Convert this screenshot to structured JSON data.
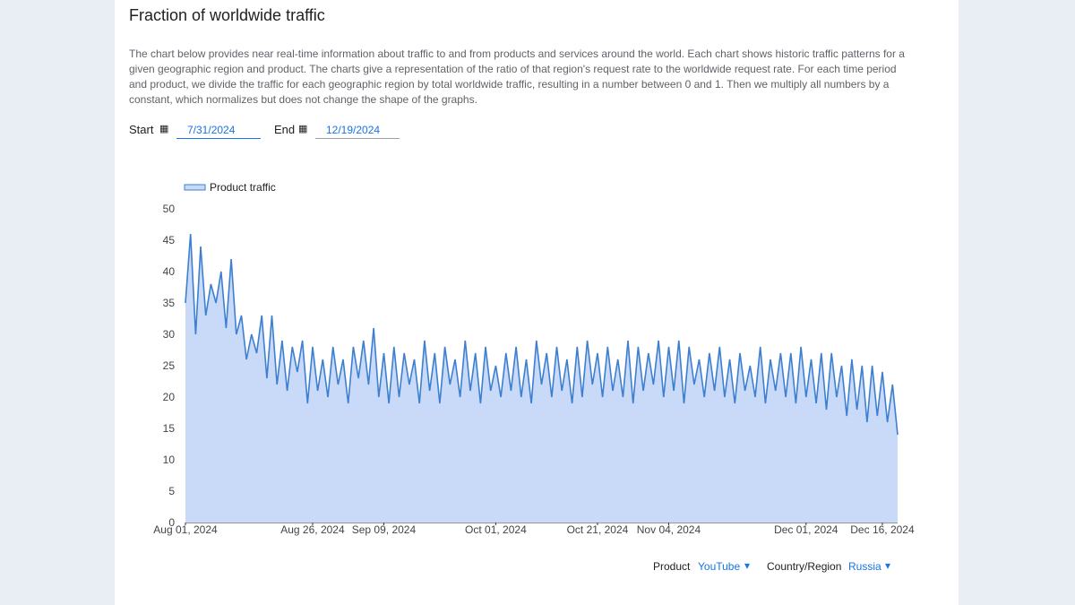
{
  "title": "Fraction of worldwide traffic",
  "description": "The chart below provides near real-time information about traffic to and from products and services around the world. Each chart shows historic traffic patterns for a given geographic region and product. The charts give a representation of the ratio of that region's request rate to the worldwide request rate. For each time period and product, we divide the traffic for each geographic region by total worldwide traffic, resulting in a number between 0 and 1. Then we multiply all numbers by a constant, which normalizes but does not change the shape of the graphs.",
  "start_label": "Start",
  "start_date": "7/31/2024",
  "end_label": "End",
  "end_date": "12/19/2024",
  "product_label": "Product",
  "product": "YouTube",
  "region_label": "Country/Region",
  "region": "Russia",
  "chart_data": {
    "type": "line",
    "x": [
      "2024-08-01",
      "2024-08-02",
      "2024-08-03",
      "2024-08-04",
      "2024-08-05",
      "2024-08-06",
      "2024-08-07",
      "2024-08-08",
      "2024-08-09",
      "2024-08-10",
      "2024-08-11",
      "2024-08-12",
      "2024-08-13",
      "2024-08-14",
      "2024-08-15",
      "2024-08-16",
      "2024-08-17",
      "2024-08-18",
      "2024-08-19",
      "2024-08-20",
      "2024-08-21",
      "2024-08-22",
      "2024-08-23",
      "2024-08-24",
      "2024-08-25",
      "2024-08-26",
      "2024-08-27",
      "2024-08-28",
      "2024-08-29",
      "2024-08-30",
      "2024-08-31",
      "2024-09-01",
      "2024-09-02",
      "2024-09-03",
      "2024-09-04",
      "2024-09-05",
      "2024-09-06",
      "2024-09-07",
      "2024-09-08",
      "2024-09-09",
      "2024-09-10",
      "2024-09-11",
      "2024-09-12",
      "2024-09-13",
      "2024-09-14",
      "2024-09-15",
      "2024-09-16",
      "2024-09-17",
      "2024-09-18",
      "2024-09-19",
      "2024-09-20",
      "2024-09-21",
      "2024-09-22",
      "2024-09-23",
      "2024-09-24",
      "2024-09-25",
      "2024-09-26",
      "2024-09-27",
      "2024-09-28",
      "2024-09-29",
      "2024-09-30",
      "2024-10-01",
      "2024-10-02",
      "2024-10-03",
      "2024-10-04",
      "2024-10-05",
      "2024-10-06",
      "2024-10-07",
      "2024-10-08",
      "2024-10-09",
      "2024-10-10",
      "2024-10-11",
      "2024-10-12",
      "2024-10-13",
      "2024-10-14",
      "2024-10-15",
      "2024-10-16",
      "2024-10-17",
      "2024-10-18",
      "2024-10-19",
      "2024-10-20",
      "2024-10-21",
      "2024-10-22",
      "2024-10-23",
      "2024-10-24",
      "2024-10-25",
      "2024-10-26",
      "2024-10-27",
      "2024-10-28",
      "2024-10-29",
      "2024-10-30",
      "2024-10-31",
      "2024-11-01",
      "2024-11-02",
      "2024-11-03",
      "2024-11-04",
      "2024-11-05",
      "2024-11-06",
      "2024-11-07",
      "2024-11-08",
      "2024-11-09",
      "2024-11-10",
      "2024-11-11",
      "2024-11-12",
      "2024-11-13",
      "2024-11-14",
      "2024-11-15",
      "2024-11-16",
      "2024-11-17",
      "2024-11-18",
      "2024-11-19",
      "2024-11-20",
      "2024-11-21",
      "2024-11-22",
      "2024-11-23",
      "2024-11-24",
      "2024-11-25",
      "2024-11-26",
      "2024-11-27",
      "2024-11-28",
      "2024-11-29",
      "2024-11-30",
      "2024-12-01",
      "2024-12-02",
      "2024-12-03",
      "2024-12-04",
      "2024-12-05",
      "2024-12-06",
      "2024-12-07",
      "2024-12-08",
      "2024-12-09",
      "2024-12-10",
      "2024-12-11",
      "2024-12-12",
      "2024-12-13",
      "2024-12-14",
      "2024-12-15",
      "2024-12-16",
      "2024-12-17",
      "2024-12-18",
      "2024-12-19"
    ],
    "series": [
      {
        "name": "Product traffic",
        "color": "#3d7fd0",
        "fill": "#c8daf8",
        "values": [
          35,
          46,
          30,
          44,
          33,
          38,
          35,
          40,
          31,
          42,
          30,
          33,
          26,
          30,
          27,
          33,
          23,
          33,
          22,
          29,
          21,
          28,
          24,
          29,
          19,
          28,
          21,
          26,
          20,
          28,
          22,
          26,
          19,
          28,
          23,
          29,
          22,
          31,
          20,
          27,
          19,
          28,
          20,
          27,
          22,
          26,
          19,
          29,
          21,
          27,
          19,
          28,
          22,
          26,
          20,
          29,
          21,
          27,
          19,
          28,
          21,
          25,
          20,
          27,
          21,
          28,
          20,
          26,
          19,
          29,
          22,
          27,
          20,
          28,
          21,
          26,
          19,
          28,
          20,
          29,
          22,
          27,
          20,
          28,
          21,
          26,
          20,
          29,
          19,
          28,
          21,
          27,
          22,
          29,
          20,
          28,
          21,
          29,
          19,
          28,
          22,
          26,
          20,
          27,
          21,
          28,
          20,
          26,
          19,
          27,
          21,
          25,
          20,
          28,
          19,
          26,
          21,
          27,
          20,
          27,
          19,
          28,
          20,
          26,
          19,
          27,
          18,
          27,
          20,
          25,
          17,
          26,
          18,
          25,
          16,
          25,
          17,
          24,
          16,
          22,
          14
        ]
      }
    ],
    "ylim": [
      0,
      50
    ],
    "yticks": [
      0,
      5,
      10,
      15,
      20,
      25,
      30,
      35,
      40,
      45,
      50
    ],
    "xticks": [
      {
        "value": "2024-08-01",
        "label": "Aug 01, 2024"
      },
      {
        "value": "2024-08-26",
        "label": "Aug 26, 2024"
      },
      {
        "value": "2024-09-09",
        "label": "Sep 09, 2024"
      },
      {
        "value": "2024-10-01",
        "label": "Oct 01, 2024"
      },
      {
        "value": "2024-10-21",
        "label": "Oct 21, 2024"
      },
      {
        "value": "2024-11-04",
        "label": "Nov 04, 2024"
      },
      {
        "value": "2024-12-01",
        "label": "Dec 01, 2024"
      },
      {
        "value": "2024-12-16",
        "label": "Dec 16, 2024"
      }
    ]
  }
}
